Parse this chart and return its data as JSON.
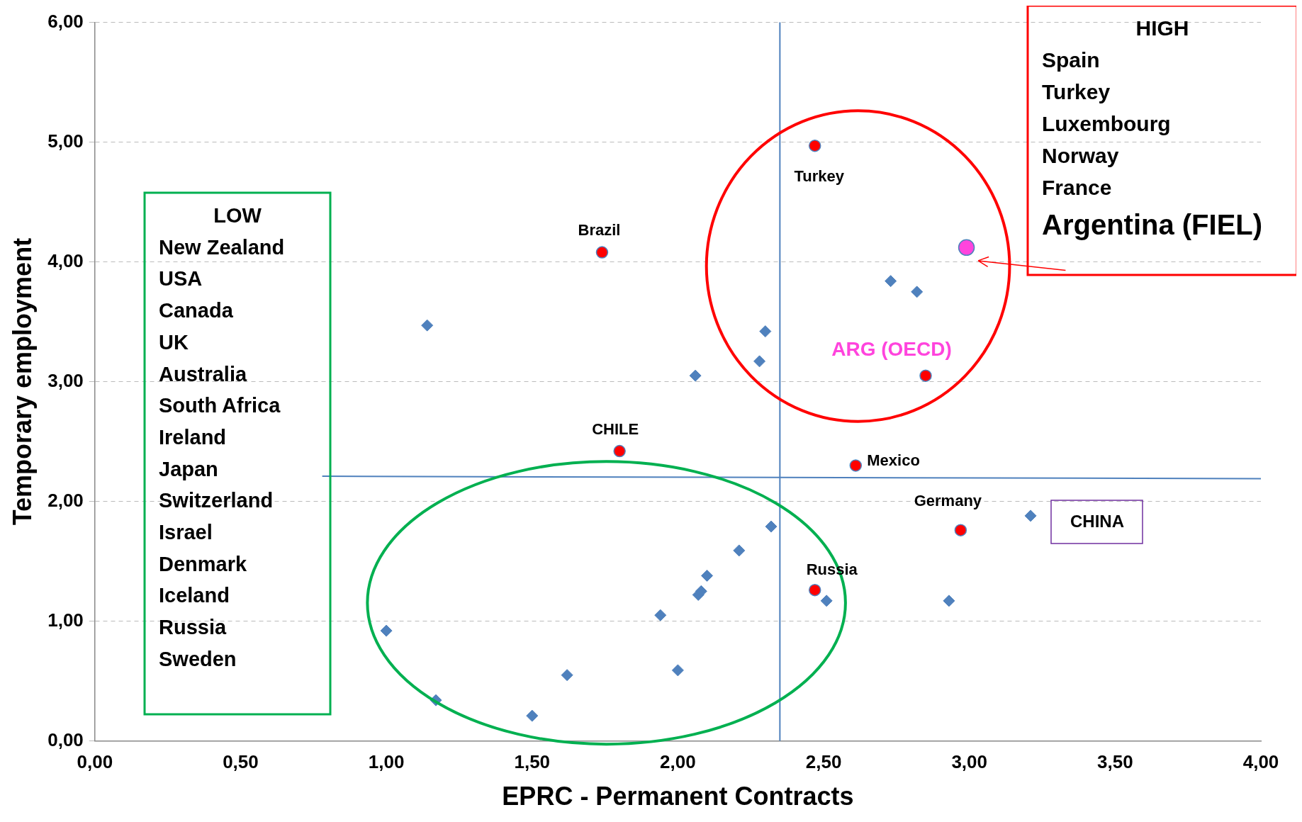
{
  "chart_data": {
    "type": "scatter",
    "xlabel": "EPRC - Permanent Contracts",
    "ylabel": "Temporary employment",
    "xlim": [
      0,
      4
    ],
    "xticks": [
      {
        "value": 0,
        "label": "0,00"
      },
      {
        "value": 0.5,
        "label": "0,50"
      },
      {
        "value": 1,
        "label": "1,00"
      },
      {
        "value": 1.5,
        "label": "1,50"
      },
      {
        "value": 2,
        "label": "2,00"
      },
      {
        "value": 2.5,
        "label": "2,50"
      },
      {
        "value": 3,
        "label": "3,00"
      },
      {
        "value": 3.5,
        "label": "3,50"
      },
      {
        "value": 4,
        "label": "4,00"
      }
    ],
    "ylim": [
      0,
      6
    ],
    "yticks": [
      {
        "value": 0,
        "label": "0,00"
      },
      {
        "value": 1,
        "label": "1,00"
      },
      {
        "value": 2,
        "label": "2,00"
      },
      {
        "value": 3,
        "label": "3,00"
      },
      {
        "value": 4,
        "label": "4,00"
      },
      {
        "value": 5,
        "label": "5,00"
      },
      {
        "value": 6,
        "label": "6,00"
      }
    ],
    "grid": "y",
    "legend": false,
    "series": [
      {
        "color": "#4f81bd",
        "marker": "diamond",
        "x": [
          1.14,
          1.0,
          1.17,
          1.5,
          1.62,
          1.94,
          2.0,
          2.06,
          2.07,
          2.08,
          2.1,
          2.21,
          2.28,
          2.3,
          2.32,
          2.51,
          2.73,
          2.82,
          2.93,
          3.21
        ],
        "values": [
          3.47,
          0.92,
          0.34,
          0.21,
          0.55,
          1.05,
          0.59,
          3.05,
          1.22,
          1.25,
          1.38,
          1.59,
          3.17,
          3.42,
          1.79,
          1.17,
          3.84,
          3.75,
          1.17,
          1.88
        ]
      },
      {
        "color": "#ff0000",
        "marker": "circle",
        "x": [
          2.47,
          1.74,
          1.8,
          2.61,
          2.97,
          2.47,
          2.85
        ],
        "values": [
          4.97,
          4.08,
          2.42,
          2.3,
          1.76,
          1.26,
          3.05
        ]
      },
      {
        "color": "#ff44dd",
        "marker": "circle",
        "x": [
          2.99
        ],
        "values": [
          4.12
        ]
      },
      {
        "type": "line",
        "color": "#4f81bd",
        "marker": "none",
        "x": [
          0.78,
          4.0
        ],
        "values": [
          2.21,
          2.19
        ]
      }
    ],
    "ref_lines": [
      {
        "axis": "x",
        "value": 2.35,
        "color": "#4f81bd"
      }
    ],
    "annotations": [
      {
        "text": "Turkey",
        "x": 2.47,
        "y": 4.97
      },
      {
        "text": "Brazil",
        "x": 1.74,
        "y": 4.08
      },
      {
        "text": "CHILE",
        "x": 1.8,
        "y": 2.42
      },
      {
        "text": "Mexico",
        "x": 2.61,
        "y": 2.3
      },
      {
        "text": "Germany",
        "x": 2.97,
        "y": 1.76
      },
      {
        "text": "Russia",
        "x": 2.47,
        "y": 1.26
      },
      {
        "text": "ARG (OECD)",
        "x": 2.85,
        "y": 3.05
      },
      "LOW\nNew Zealand\nUSA\nCanada\nUK\nAustralia\nSouth Africa\nIreland\nJapan\nSwitzerland\nIsrael\nDenmark\nIceland\nRussia\nSweden",
      "HIGH\nSpain\nTurkey\nLuxembourg\nNorway\nFrance\nArgentina (FIEL)",
      "CHINA"
    ]
  }
}
